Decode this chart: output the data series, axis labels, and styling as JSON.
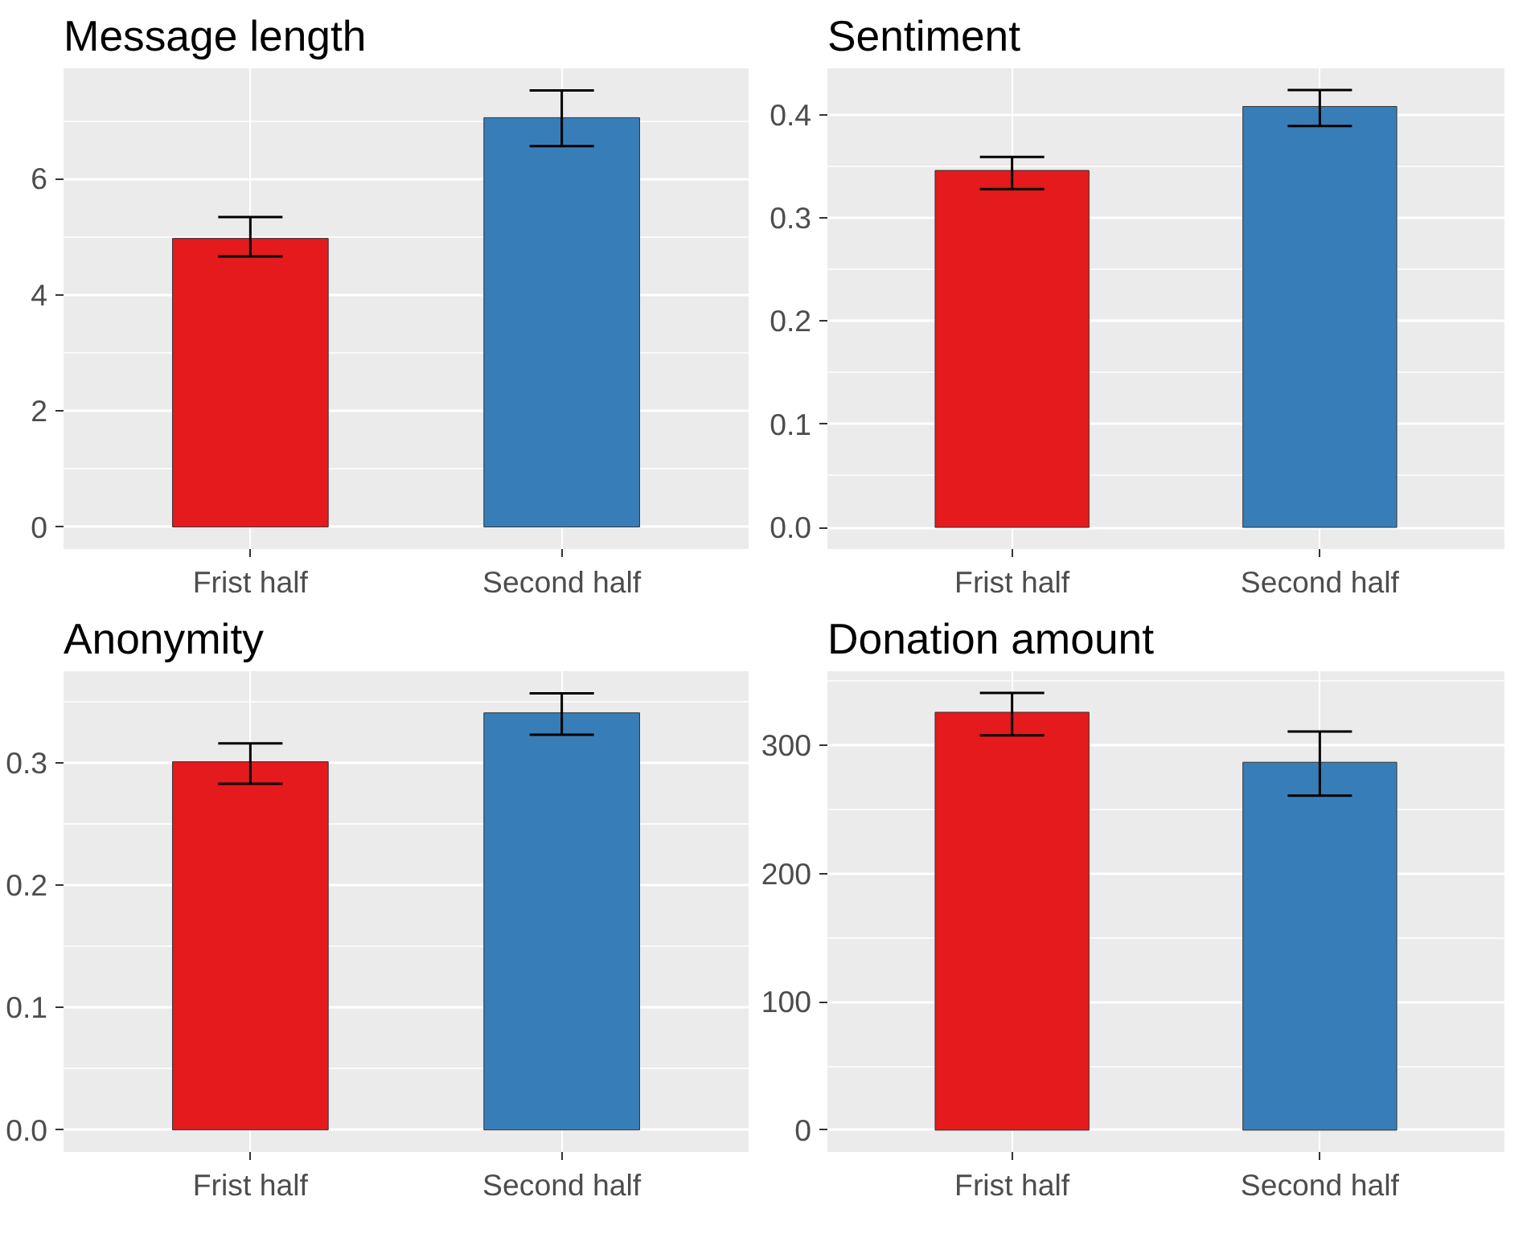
{
  "chart_data": [
    {
      "type": "bar",
      "title": "Message length",
      "categories": [
        "Frist half",
        "Second half"
      ],
      "values": [
        4.97,
        7.05
      ],
      "colors": [
        "#e41a1c",
        "#377eb8"
      ],
      "errors": [
        [
          4.66,
          5.34
        ],
        [
          6.56,
          7.52
        ]
      ],
      "ylim": [
        -0.38,
        7.9
      ],
      "yticks": [
        0,
        2,
        4,
        6
      ],
      "grid": true
    },
    {
      "type": "bar",
      "title": "Sentiment",
      "categories": [
        "Frist half",
        "Second half"
      ],
      "values": [
        0.346,
        0.408
      ],
      "colors": [
        "#e41a1c",
        "#377eb8"
      ],
      "errors": [
        [
          0.328,
          0.359
        ],
        [
          0.389,
          0.424
        ]
      ],
      "ylim": [
        -0.021,
        0.445
      ],
      "yticks": [
        {
          "value": 0,
          "label": "0.0"
        },
        0.1,
        0.2,
        0.3,
        0.4
      ],
      "grid": true
    },
    {
      "type": "bar",
      "title": "Anonymity",
      "categories": [
        "Frist half",
        "Second half"
      ],
      "values": [
        0.301,
        0.341
      ],
      "colors": [
        "#e41a1c",
        "#377eb8"
      ],
      "errors": [
        [
          0.283,
          0.316
        ],
        [
          0.323,
          0.357
        ]
      ],
      "ylim": [
        -0.018,
        0.375
      ],
      "yticks": [
        {
          "value": 0,
          "label": "0.0"
        },
        0.1,
        0.2,
        0.3
      ],
      "grid": true
    },
    {
      "type": "bar",
      "title": "Donation amount",
      "categories": [
        "Frist half",
        "Second half"
      ],
      "values": [
        326,
        287
      ],
      "colors": [
        "#e41a1c",
        "#377eb8"
      ],
      "errors": [
        [
          308,
          341
        ],
        [
          261,
          311
        ]
      ],
      "ylim": [
        -17,
        358
      ],
      "yticks": [
        0,
        100,
        200,
        300
      ],
      "grid": true
    }
  ]
}
